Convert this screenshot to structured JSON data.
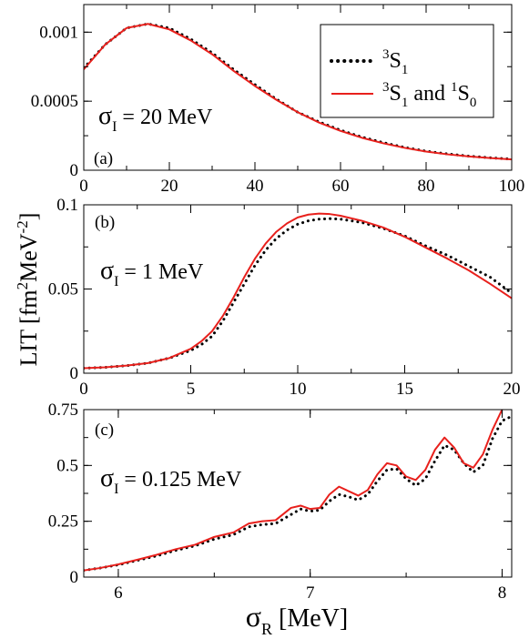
{
  "figure": {
    "ylabel_parts": [
      "LIT [fm",
      "2",
      "MeV",
      "-2",
      "]"
    ],
    "xlabel_parts": [
      "σ",
      "R",
      " [MeV]"
    ],
    "legend": {
      "series1_parts": [
        "3",
        "S",
        "1"
      ],
      "series2_parts": [
        "3",
        "S",
        "1",
        " and ",
        "1",
        "S",
        "0"
      ]
    }
  },
  "styles": {
    "series1_color": "#000000",
    "series1_dash": "dotted",
    "series2_color": "#e8201c",
    "series2_dash": "solid"
  },
  "chart_data": [
    {
      "type": "line",
      "panel": "(a)",
      "annotation_parts": [
        "σ",
        "I",
        " = 20 MeV"
      ],
      "xlim": [
        0,
        100
      ],
      "ylim": [
        0,
        0.0012
      ],
      "xticks": [
        0,
        20,
        40,
        60,
        80,
        100
      ],
      "xtick_labels": [
        "0",
        "20",
        "40",
        "60",
        "80",
        "100"
      ],
      "yticks": [
        0,
        0.0005,
        0.001
      ],
      "ytick_labels": [
        "0",
        "0.0005",
        "0.001"
      ],
      "legend_position": "top-right",
      "series": [
        {
          "name": "3S1",
          "x": [
            0,
            5,
            10,
            15,
            20,
            25,
            30,
            35,
            40,
            45,
            50,
            55,
            60,
            65,
            70,
            75,
            80,
            85,
            90,
            95,
            100
          ],
          "y": [
            0.00074,
            0.00091,
            0.00103,
            0.00106,
            0.00103,
            0.00095,
            0.00085,
            0.00073,
            0.00062,
            0.000515,
            0.00042,
            0.00035,
            0.00029,
            0.00024,
            0.0002,
            0.000165,
            0.000138,
            0.000118,
            0.000102,
            9e-05,
            8e-05
          ]
        },
        {
          "name": "3S1 and 1S0",
          "x": [
            0,
            5,
            10,
            15,
            20,
            25,
            30,
            35,
            40,
            45,
            50,
            55,
            60,
            65,
            70,
            75,
            80,
            85,
            90,
            95,
            100
          ],
          "y": [
            0.00073,
            0.00091,
            0.00103,
            0.00106,
            0.00102,
            0.00094,
            0.00084,
            0.00072,
            0.00061,
            0.00051,
            0.00042,
            0.000345,
            0.000285,
            0.000235,
            0.000195,
            0.000162,
            0.000135,
            0.000115,
            0.0001,
            8.8e-05,
            7.8e-05
          ]
        }
      ]
    },
    {
      "type": "line",
      "panel": "(b)",
      "annotation_parts": [
        "σ",
        "I",
        " = 1 MeV"
      ],
      "xlim": [
        0,
        20
      ],
      "ylim": [
        0,
        0.1
      ],
      "xticks": [
        0,
        5,
        10,
        15,
        20
      ],
      "xtick_labels": [
        "0",
        "5",
        "10",
        "15",
        "20"
      ],
      "yticks": [
        0,
        0.05,
        0.1
      ],
      "ytick_labels": [
        "0",
        "0.05",
        "0.1"
      ],
      "series": [
        {
          "name": "3S1",
          "x": [
            0,
            1,
            2,
            3,
            4,
            5,
            5.5,
            6,
            6.5,
            7,
            7.5,
            8,
            8.5,
            9,
            9.5,
            10,
            10.5,
            11,
            11.5,
            12,
            13,
            14,
            15,
            16,
            17,
            18,
            19,
            20
          ],
          "y": [
            0.003,
            0.0035,
            0.0045,
            0.006,
            0.009,
            0.0135,
            0.017,
            0.022,
            0.031,
            0.042,
            0.053,
            0.064,
            0.073,
            0.08,
            0.085,
            0.0885,
            0.0905,
            0.0915,
            0.0918,
            0.0915,
            0.0895,
            0.086,
            0.0815,
            0.0755,
            0.07,
            0.0635,
            0.057,
            0.0475
          ]
        },
        {
          "name": "3S1 and 1S0",
          "x": [
            0,
            1,
            2,
            3,
            4,
            5,
            5.5,
            6,
            6.5,
            7,
            7.5,
            8,
            8.5,
            9,
            9.5,
            10,
            10.5,
            11,
            11.5,
            12,
            13,
            14,
            15,
            16,
            17,
            18,
            19,
            20
          ],
          "y": [
            0.003,
            0.0035,
            0.0045,
            0.006,
            0.009,
            0.0145,
            0.019,
            0.025,
            0.034,
            0.045,
            0.057,
            0.068,
            0.077,
            0.084,
            0.089,
            0.0925,
            0.0942,
            0.0948,
            0.0945,
            0.0935,
            0.0905,
            0.0865,
            0.081,
            0.0745,
            0.068,
            0.061,
            0.053,
            0.0445
          ]
        }
      ]
    },
    {
      "type": "line",
      "panel": "(c)",
      "annotation_parts": [
        "σ",
        "I",
        " = 0.125 MeV"
      ],
      "xlim": [
        5.82,
        8.05
      ],
      "ylim": [
        0,
        0.75
      ],
      "xticks": [
        6,
        7,
        8
      ],
      "xtick_labels": [
        "6",
        "7",
        "8"
      ],
      "yticks": [
        0,
        0.25,
        0.5,
        0.75
      ],
      "ytick_labels": [
        "0",
        "0.25",
        "0.5",
        "0.75"
      ],
      "series": [
        {
          "name": "3S1",
          "x": [
            5.82,
            5.9,
            6.0,
            6.1,
            6.2,
            6.3,
            6.4,
            6.5,
            6.6,
            6.68,
            6.75,
            6.82,
            6.9,
            6.95,
            7.0,
            7.05,
            7.1,
            7.15,
            7.2,
            7.25,
            7.3,
            7.35,
            7.4,
            7.45,
            7.5,
            7.55,
            7.6,
            7.65,
            7.7,
            7.75,
            7.8,
            7.85,
            7.9,
            7.95,
            8.0,
            8.05
          ],
          "y": [
            0.03,
            0.04,
            0.055,
            0.075,
            0.095,
            0.12,
            0.14,
            0.17,
            0.19,
            0.225,
            0.235,
            0.24,
            0.28,
            0.305,
            0.295,
            0.3,
            0.34,
            0.37,
            0.36,
            0.345,
            0.37,
            0.43,
            0.48,
            0.485,
            0.44,
            0.41,
            0.44,
            0.52,
            0.59,
            0.57,
            0.51,
            0.47,
            0.5,
            0.62,
            0.7,
            0.72
          ]
        },
        {
          "name": "3S1 and 1S0",
          "x": [
            5.82,
            5.9,
            6.0,
            6.1,
            6.2,
            6.3,
            6.4,
            6.5,
            6.6,
            6.68,
            6.75,
            6.82,
            6.9,
            6.95,
            7.0,
            7.05,
            7.1,
            7.15,
            7.2,
            7.25,
            7.3,
            7.35,
            7.4,
            7.45,
            7.5,
            7.55,
            7.6,
            7.65,
            7.7,
            7.75,
            7.8,
            7.85,
            7.9,
            7.95,
            8.0,
            8.05
          ],
          "y": [
            0.03,
            0.04,
            0.057,
            0.078,
            0.1,
            0.125,
            0.145,
            0.18,
            0.2,
            0.24,
            0.25,
            0.255,
            0.31,
            0.32,
            0.305,
            0.31,
            0.37,
            0.405,
            0.385,
            0.365,
            0.39,
            0.46,
            0.51,
            0.5,
            0.45,
            0.435,
            0.48,
            0.57,
            0.625,
            0.58,
            0.51,
            0.49,
            0.55,
            0.66,
            0.75,
            0.78
          ]
        }
      ]
    }
  ]
}
